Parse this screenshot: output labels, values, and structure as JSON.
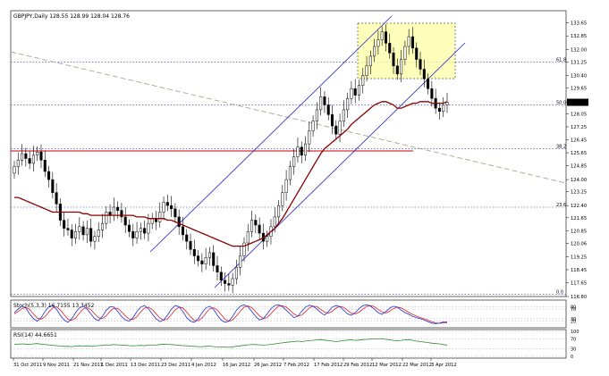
{
  "chart_data": {
    "type": "candlestick",
    "main": {
      "title": "GBPJPY,Daily  128.55 128.99 128.04 128.76",
      "ylim": [
        116.8,
        134.4
      ],
      "y_ticks": [
        "133.65",
        "132.85",
        "132.00",
        "131.25",
        "130.40",
        "129.65",
        "128.76",
        "128.05",
        "127.25",
        "126.45",
        "125.65",
        "124.85",
        "124.00",
        "123.25",
        "122.40",
        "121.65",
        "120.85",
        "120.06",
        "119.25",
        "118.45",
        "117.65",
        "116.80"
      ],
      "y_tick_values": [
        133.65,
        132.85,
        132.0,
        131.25,
        130.4,
        129.65,
        128.76,
        128.05,
        127.25,
        126.45,
        125.65,
        124.85,
        124.0,
        123.25,
        122.4,
        121.65,
        120.85,
        120.06,
        119.25,
        118.45,
        117.65,
        116.8
      ],
      "current_price": 128.76,
      "fib_levels": [
        {
          "label": "61.8",
          "value": 131.25
        },
        {
          "label": "50.0",
          "value": 128.6
        },
        {
          "label": "38.2",
          "value": 125.9
        },
        {
          "label": "23.6",
          "value": 122.3
        },
        {
          "label": "0.0",
          "value": 116.95
        }
      ],
      "x_labels": [
        "31 Oct 2011",
        "9 Nov 2011",
        "21 Nov 2011",
        "1 Dec 2011",
        "13 Dec 2011",
        "23 Dec 2011",
        "4 Jan 2012",
        "16 Jan 2012",
        "26 Jan 2012",
        "7 Feb 2012",
        "17 Feb 2012",
        "29 Feb 2012",
        "12 Mar 2012",
        "22 Mar 2012",
        "3 Apr 2012"
      ],
      "closes": [
        124.8,
        125.2,
        125.6,
        125.3,
        125.0,
        125.5,
        125.7,
        125.2,
        124.5,
        124.0,
        123.2,
        122.5,
        121.5,
        121.0,
        120.9,
        120.4,
        120.8,
        121.1,
        120.6,
        121.0,
        120.2,
        120.5,
        120.9,
        121.3,
        122.0,
        121.8,
        122.3,
        122.1,
        121.7,
        121.2,
        120.8,
        120.4,
        120.8,
        121.0,
        120.7,
        121.3,
        121.6,
        121.4,
        122.0,
        122.6,
        122.4,
        122.2,
        121.7,
        121.1,
        120.6,
        120.2,
        119.7,
        119.3,
        119.0,
        118.8,
        119.2,
        119.5,
        118.7,
        118.3,
        117.8,
        117.6,
        117.5,
        117.9,
        118.6,
        119.3,
        120.1,
        120.8,
        121.5,
        121.2,
        120.7,
        120.2,
        120.5,
        121.1,
        121.7,
        122.4,
        123.2,
        124.0,
        124.8,
        125.4,
        126.0,
        125.5,
        126.2,
        127.0,
        127.6,
        128.3,
        129.1,
        128.6,
        128.0,
        127.3,
        126.8,
        127.6,
        128.3,
        129.0,
        129.6,
        129.2,
        129.8,
        130.4,
        131.0,
        131.6,
        132.2,
        132.6,
        133.1,
        132.4,
        131.8,
        131.0,
        130.5,
        131.4,
        132.2,
        132.8,
        132.1,
        131.4,
        130.8,
        130.2,
        129.6,
        129.0,
        128.4,
        128.2,
        128.6,
        128.76
      ],
      "sma": [
        122.9,
        122.9,
        122.8,
        122.7,
        122.6,
        122.5,
        122.4,
        122.3,
        122.2,
        122.1,
        122.0,
        122.0,
        122.0,
        122.0,
        122.0,
        122.0,
        122.0,
        122.0,
        121.9,
        121.9,
        121.8,
        121.8,
        121.8,
        121.8,
        121.8,
        121.8,
        121.8,
        121.8,
        121.8,
        121.8,
        121.8,
        121.8,
        121.7,
        121.7,
        121.7,
        121.6,
        121.6,
        121.6,
        121.6,
        121.6,
        121.5,
        121.5,
        121.4,
        121.3,
        121.2,
        121.1,
        121.0,
        120.9,
        120.8,
        120.7,
        120.6,
        120.5,
        120.4,
        120.3,
        120.2,
        120.1,
        120.0,
        119.9,
        119.9,
        119.9,
        119.9,
        120.0,
        120.1,
        120.2,
        120.3,
        120.4,
        120.6,
        120.8,
        121.0,
        121.3,
        121.6,
        122.0,
        122.4,
        122.8,
        123.2,
        123.6,
        124.0,
        124.4,
        124.8,
        125.2,
        125.6,
        125.9,
        126.1,
        126.3,
        126.5,
        126.7,
        126.9,
        127.1,
        127.4,
        127.6,
        127.8,
        128.0,
        128.2,
        128.4,
        128.6,
        128.7,
        128.8,
        128.8,
        128.7,
        128.6,
        128.4,
        128.4,
        128.5,
        128.6,
        128.7,
        128.7,
        128.8,
        128.8,
        128.8,
        128.7,
        128.7,
        128.7,
        128.7,
        128.8
      ]
    },
    "stochastic": {
      "title": "Stoch(5,3,3) 16.7155 13.3452",
      "ylim": [
        0,
        100
      ],
      "levels": [
        "80",
        "70",
        "30",
        "20"
      ],
      "k": [
        55,
        70,
        82,
        75,
        50,
        30,
        20,
        35,
        60,
        80,
        85,
        70,
        45,
        25,
        15,
        30,
        55,
        75,
        82,
        70,
        50,
        30,
        22,
        40,
        65,
        80,
        78,
        60,
        40,
        25,
        20,
        35,
        60,
        78,
        85,
        72,
        50,
        30,
        18,
        25,
        45,
        70,
        85,
        80,
        60,
        35,
        20,
        15,
        30,
        55,
        75,
        82,
        70,
        45,
        25,
        15,
        20,
        40,
        65,
        82,
        88,
        80,
        60,
        40,
        25,
        30,
        50,
        72,
        85,
        88,
        80,
        65,
        50,
        35,
        40,
        60,
        78,
        86,
        82,
        70,
        55,
        45,
        60,
        78,
        85,
        80,
        65,
        50,
        45,
        55,
        72,
        84,
        88,
        82,
        70,
        55,
        48,
        60,
        74,
        82,
        78,
        66,
        55,
        48,
        40,
        35,
        30,
        25,
        18,
        12,
        10,
        12,
        16.7,
        16.7
      ],
      "d": [
        50,
        60,
        72,
        78,
        68,
        50,
        33,
        28,
        38,
        58,
        75,
        80,
        67,
        47,
        28,
        23,
        33,
        53,
        71,
        76,
        68,
        50,
        34,
        31,
        42,
        62,
        74,
        73,
        59,
        42,
        28,
        27,
        38,
        58,
        74,
        78,
        69,
        51,
        33,
        24,
        29,
        47,
        67,
        78,
        75,
        58,
        38,
        23,
        22,
        33,
        53,
        71,
        76,
        66,
        47,
        28,
        20,
        25,
        42,
        62,
        78,
        83,
        76,
        60,
        42,
        32,
        35,
        51,
        69,
        82,
        84,
        78,
        65,
        50,
        42,
        45,
        59,
        75,
        82,
        80,
        69,
        57,
        53,
        61,
        74,
        81,
        77,
        65,
        53,
        50,
        57,
        70,
        81,
        85,
        80,
        69,
        58,
        54,
        61,
        72,
        78,
        75,
        66,
        56,
        48,
        41,
        35,
        30,
        24,
        18,
        13,
        11,
        13,
        13.3
      ]
    },
    "rsi": {
      "title": "RSI(14) 44.6651",
      "ylim": [
        0,
        100
      ],
      "levels": [
        "100",
        "70",
        "30",
        "0"
      ],
      "values": [
        48,
        49,
        50,
        49,
        48,
        50,
        51,
        49,
        47,
        46,
        44,
        43,
        41,
        40,
        40,
        39,
        41,
        42,
        41,
        42,
        40,
        41,
        43,
        44,
        46,
        45,
        47,
        46,
        45,
        44,
        43,
        42,
        43,
        44,
        43,
        45,
        46,
        45,
        47,
        49,
        48,
        47,
        46,
        44,
        43,
        42,
        41,
        40,
        39,
        39,
        40,
        41,
        39,
        38,
        37,
        37,
        36,
        38,
        40,
        42,
        44,
        46,
        48,
        47,
        46,
        45,
        46,
        48,
        50,
        52,
        54,
        56,
        58,
        59,
        61,
        59,
        61,
        63,
        64,
        66,
        67,
        65,
        63,
        61,
        59,
        61,
        63,
        65,
        66,
        64,
        65,
        67,
        68,
        69,
        70,
        70,
        71,
        68,
        66,
        64,
        62,
        64,
        66,
        67,
        64,
        61,
        59,
        57,
        55,
        53,
        51,
        50,
        47,
        44.7
      ]
    }
  }
}
